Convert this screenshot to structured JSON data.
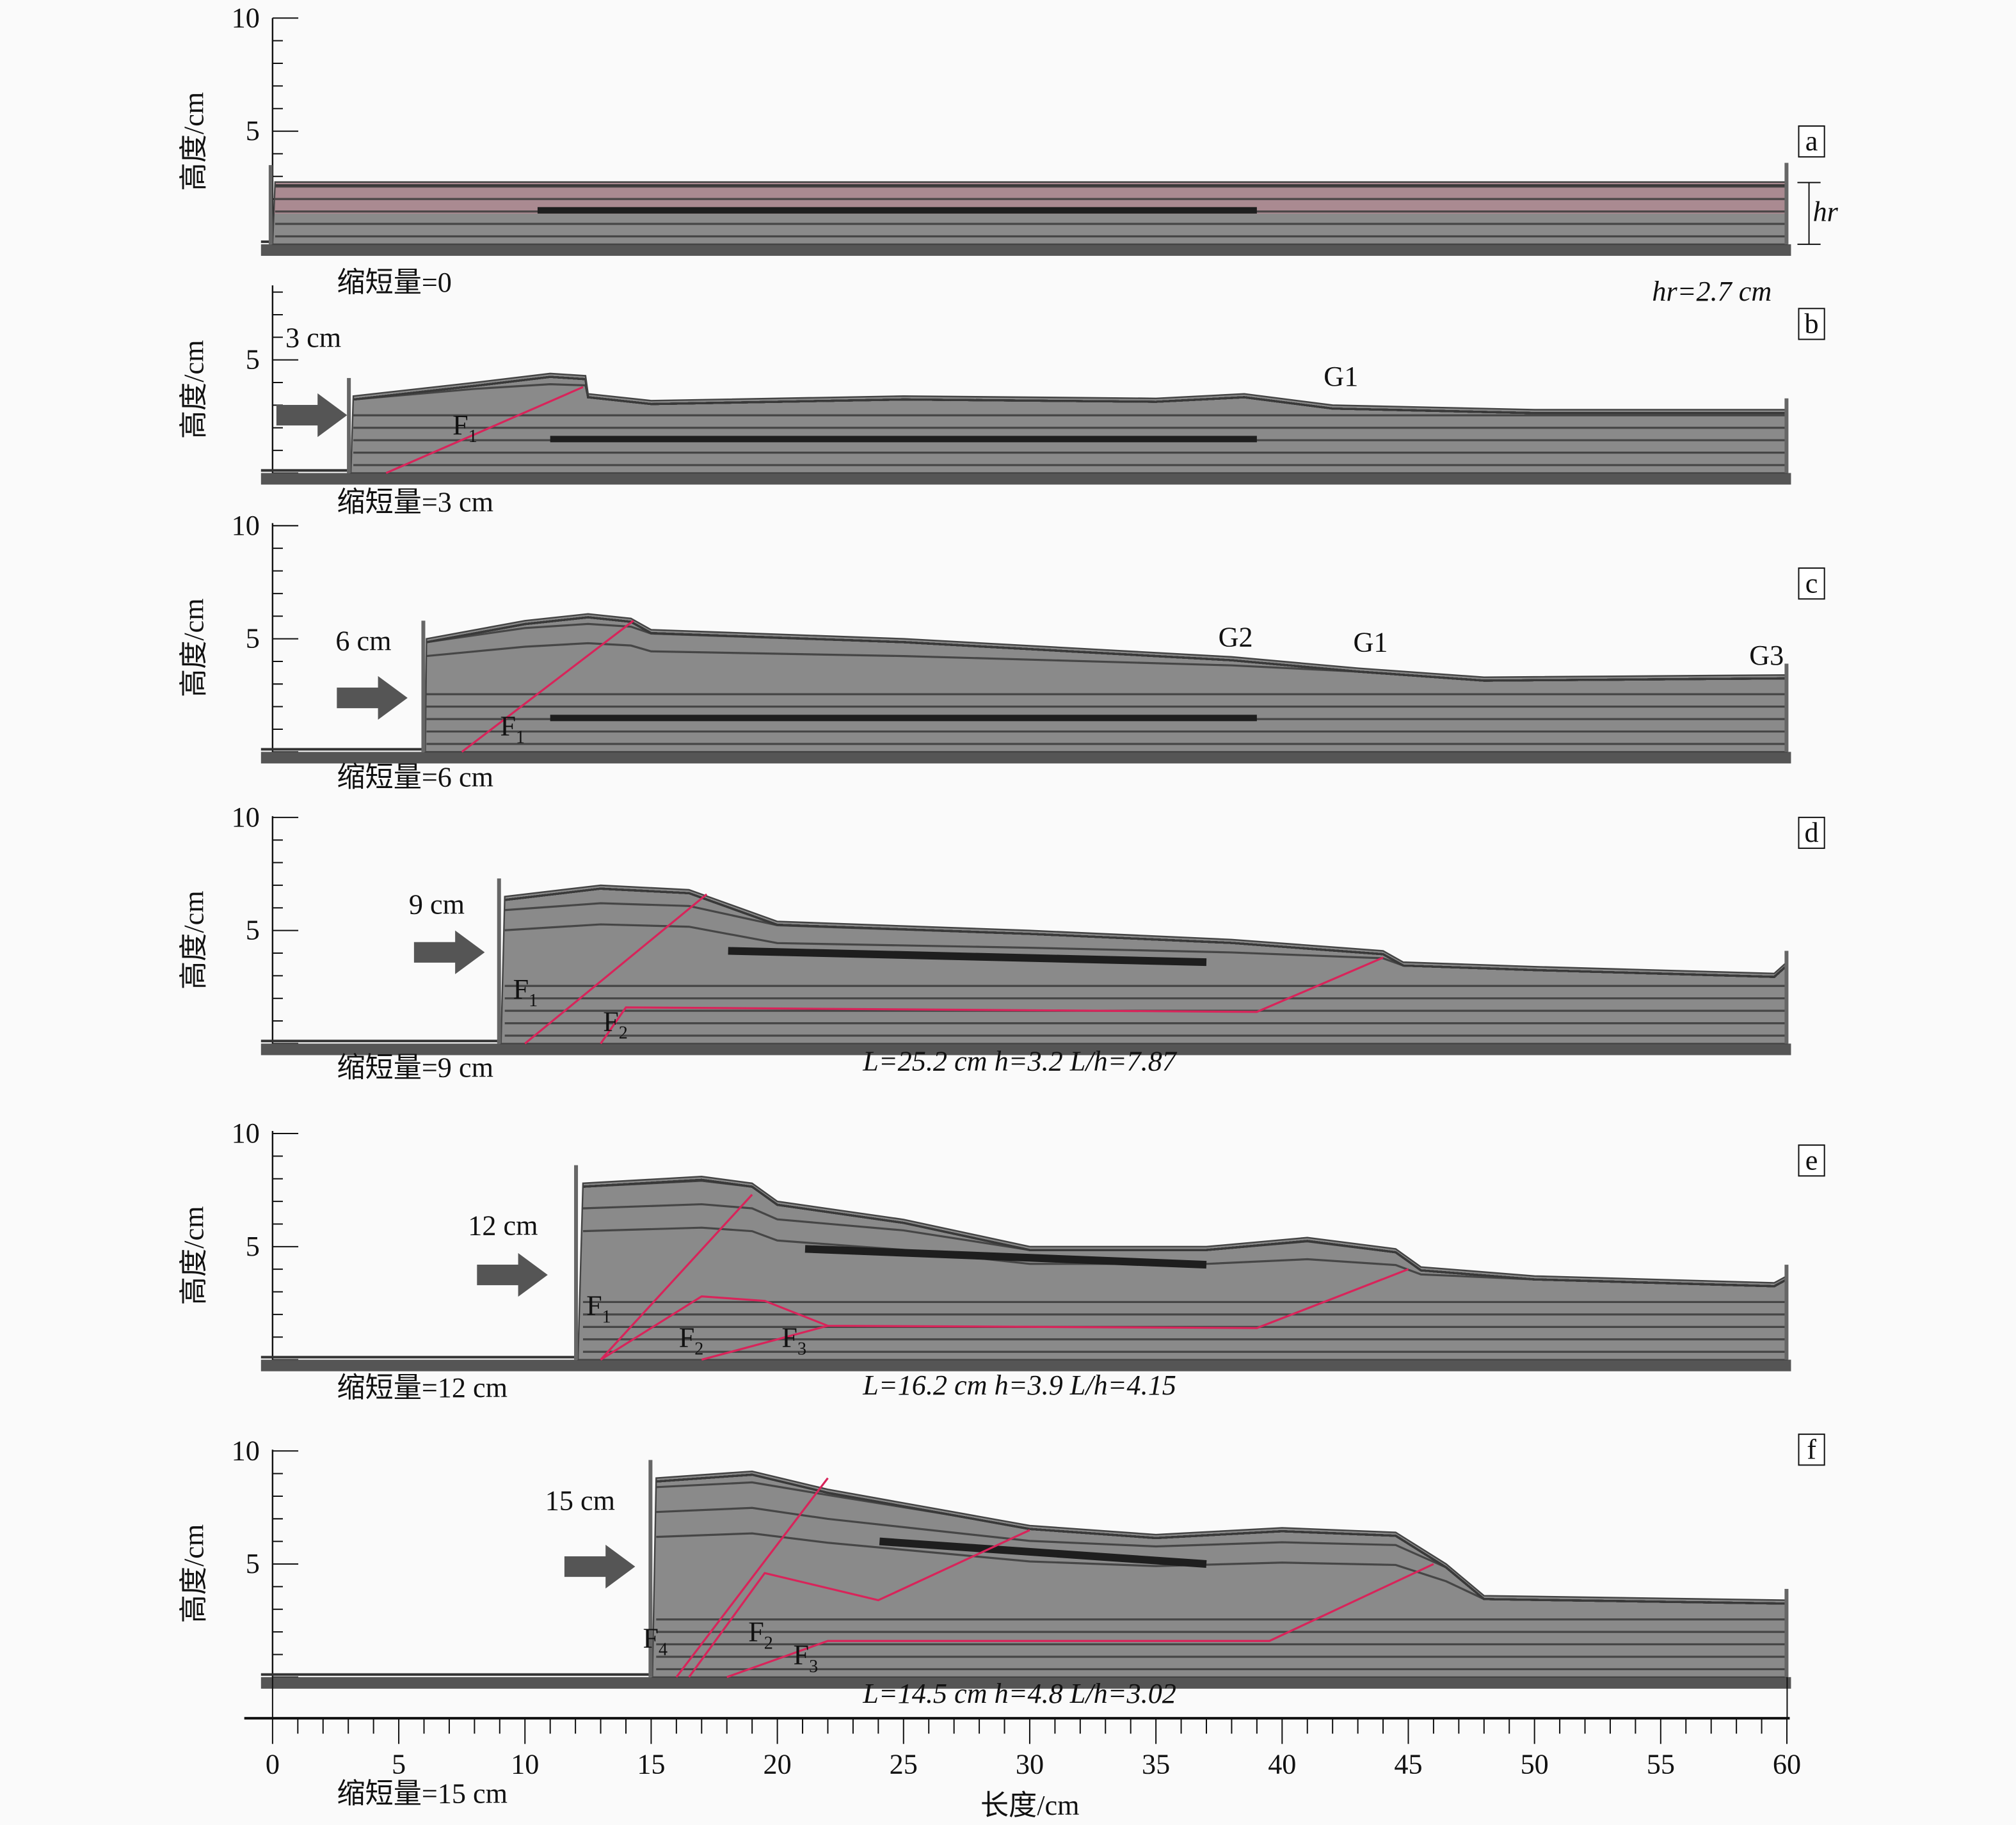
{
  "figure": {
    "ylabel": "高度/cm",
    "xlabel": "长度/cm"
  },
  "x_axis": {
    "ticks": [
      "0",
      "5",
      "10",
      "15",
      "20",
      "25",
      "30",
      "35",
      "40",
      "45",
      "50",
      "55",
      "60"
    ]
  },
  "panels": [
    {
      "id": "a",
      "yticks": [
        "10",
        "5"
      ],
      "shortening": "缩短量=0",
      "note": "hr=2.7 cm",
      "hr_marker": "hr",
      "displacement": "",
      "gauges": [],
      "faults": [],
      "ratio": ""
    },
    {
      "id": "b",
      "yticks": [
        "5"
      ],
      "shortening": "缩短量=3 cm",
      "displacement": "3 cm",
      "gauges": [
        "G1"
      ],
      "faults": [
        {
          "letter": "F",
          "sub": "1"
        }
      ],
      "ratio": ""
    },
    {
      "id": "c",
      "yticks": [
        "10",
        "5"
      ],
      "shortening": "缩短量=6 cm",
      "displacement": "6 cm",
      "gauges": [
        "G2",
        "G1",
        "G3"
      ],
      "faults": [
        {
          "letter": "F",
          "sub": "1"
        }
      ],
      "ratio": ""
    },
    {
      "id": "d",
      "yticks": [
        "10",
        "5"
      ],
      "shortening": "缩短量=9 cm",
      "displacement": "9 cm",
      "gauges": [],
      "faults": [
        {
          "letter": "F",
          "sub": "1"
        },
        {
          "letter": "F",
          "sub": "2"
        }
      ],
      "ratio": "L=25.2 cm h=3.2 L/h=7.87"
    },
    {
      "id": "e",
      "yticks": [
        "10",
        "5"
      ],
      "shortening": "缩短量=12 cm",
      "displacement": "12 cm",
      "gauges": [],
      "faults": [
        {
          "letter": "F",
          "sub": "1"
        },
        {
          "letter": "F",
          "sub": "2"
        },
        {
          "letter": "F",
          "sub": "3"
        }
      ],
      "ratio": "L=16.2 cm h=3.9 L/h=4.15"
    },
    {
      "id": "f",
      "yticks": [
        "10",
        "5"
      ],
      "shortening": "缩短量=15 cm",
      "displacement": "15 cm",
      "gauges": [],
      "faults": [
        {
          "letter": "F",
          "sub": "4"
        },
        {
          "letter": "F",
          "sub": "2"
        },
        {
          "letter": "F",
          "sub": "3"
        }
      ],
      "ratio": "L=14.5 cm h=4.8 L/h=3.02"
    }
  ],
  "colors": {
    "sand": "#8a8a8a",
    "dark_layer": "#1e1e1e",
    "fault": "#d8245a",
    "base": "#555555",
    "pink_tint": "#b88a94"
  }
}
